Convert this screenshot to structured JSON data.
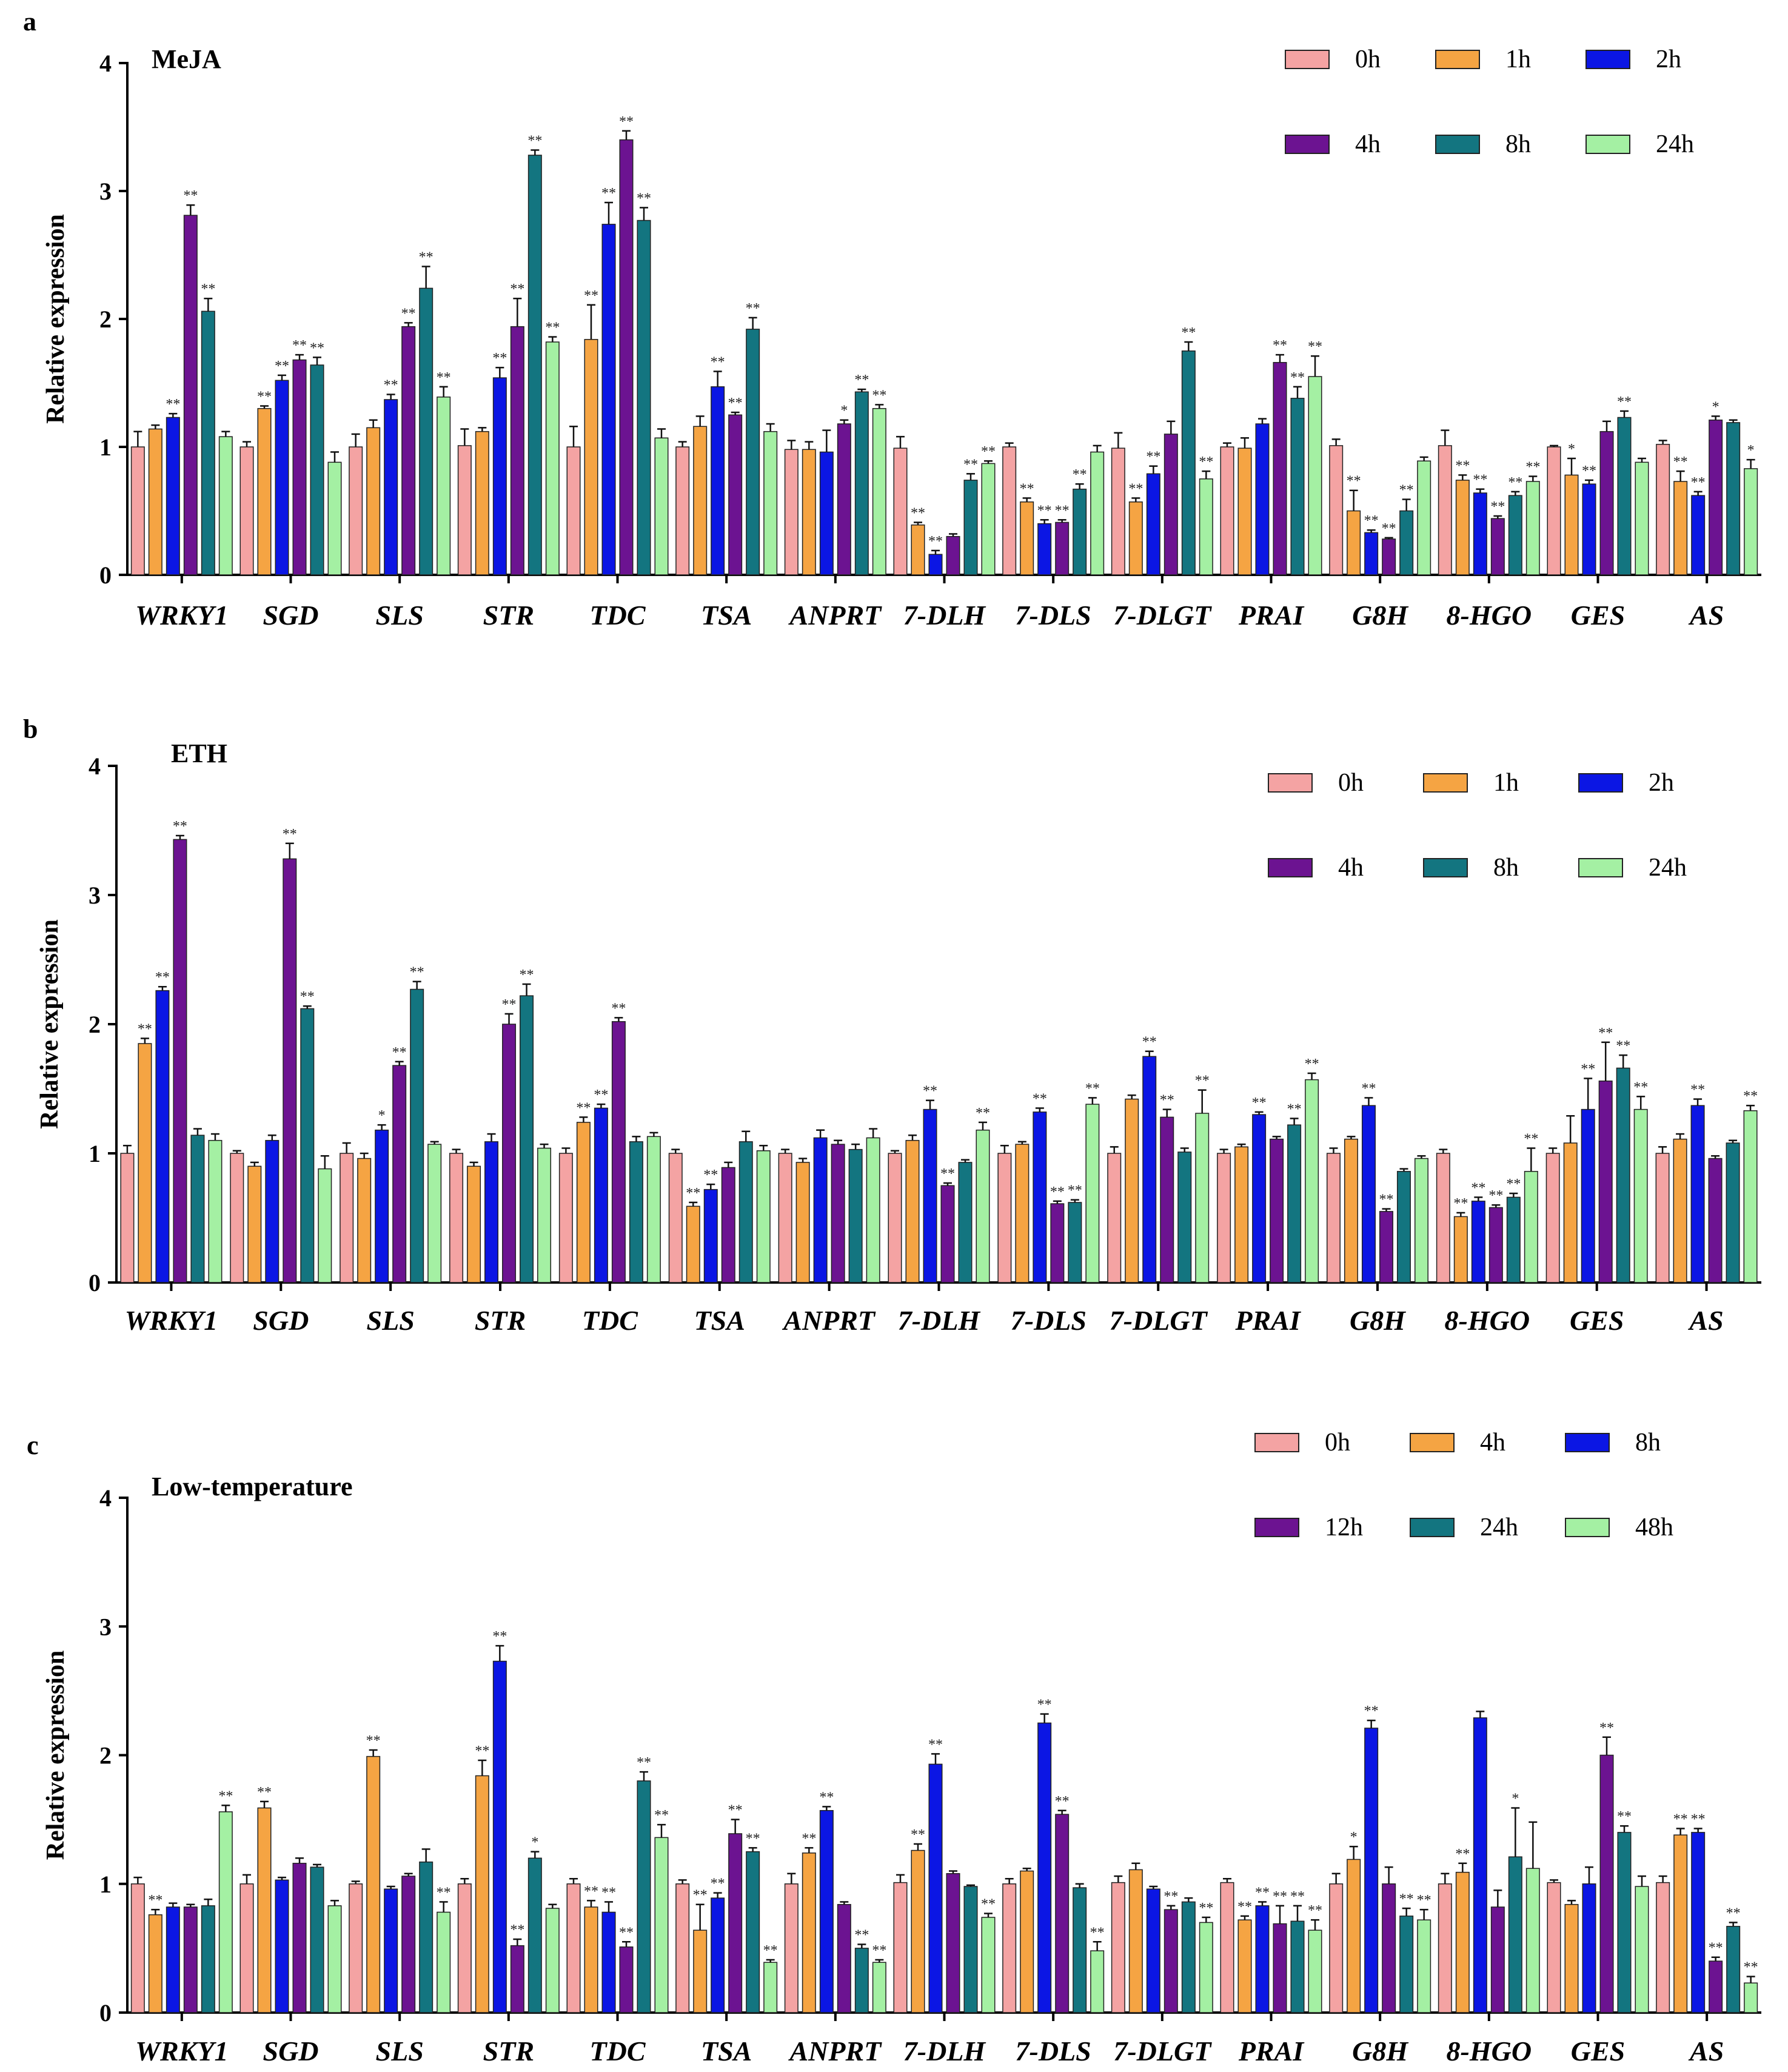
{
  "figure": {
    "ylabel": "Relative expression"
  },
  "chart_data": [
    {
      "type": "bar",
      "panel": "a",
      "title": "MeJA",
      "ylabel": "Relative expression",
      "ylim": [
        0,
        4
      ],
      "yticks": [
        0,
        1,
        2,
        3,
        4
      ],
      "categories": [
        "WRKY1",
        "SGD",
        "SLS",
        "STR",
        "TDC",
        "TSA",
        "ANPRT",
        "7-DLH",
        "7-DLS",
        "7-DLGT",
        "PRAI",
        "G8H",
        "8-HGO",
        "GES",
        "AS"
      ],
      "legend": [
        "0h",
        "1h",
        "2h",
        "4h",
        "8h",
        "24h"
      ],
      "colors": [
        "#f4a3a3",
        "#f5a443",
        "#0b16e4",
        "#6c1391",
        "#137580",
        "#a4f0a3"
      ],
      "series": [
        {
          "name": "0h",
          "values": [
            1.0,
            1.0,
            1.0,
            1.01,
            1.0,
            1.0,
            0.98,
            0.99,
            1.0,
            0.99,
            1.0,
            1.01,
            1.01,
            1.0,
            1.02
          ],
          "errors": [
            0.12,
            0.04,
            0.1,
            0.13,
            0.16,
            0.04,
            0.07,
            0.09,
            0.03,
            0.12,
            0.03,
            0.05,
            0.12,
            0.01,
            0.03
          ],
          "sig": [
            "",
            "",
            "",
            "",
            "",
            "",
            "",
            "",
            "",
            "",
            "",
            "",
            "",
            "",
            ""
          ]
        },
        {
          "name": "1h",
          "values": [
            1.14,
            1.3,
            1.15,
            1.12,
            1.84,
            1.16,
            0.98,
            0.39,
            0.57,
            0.57,
            0.99,
            0.5,
            0.74,
            0.78,
            0.73
          ],
          "errors": [
            0.03,
            0.02,
            0.06,
            0.03,
            0.27,
            0.08,
            0.06,
            0.02,
            0.03,
            0.03,
            0.08,
            0.16,
            0.04,
            0.13,
            0.08
          ],
          "sig": [
            "",
            "**",
            "",
            "",
            "**",
            "",
            "",
            "**",
            "**",
            "**",
            "",
            "**",
            "**",
            "*",
            "**"
          ]
        },
        {
          "name": "2h",
          "values": [
            1.23,
            1.52,
            1.37,
            1.54,
            2.74,
            1.47,
            0.96,
            0.16,
            0.4,
            0.79,
            1.18,
            0.33,
            0.64,
            0.71,
            0.62
          ],
          "errors": [
            0.03,
            0.04,
            0.04,
            0.08,
            0.17,
            0.12,
            0.17,
            0.03,
            0.03,
            0.06,
            0.04,
            0.02,
            0.03,
            0.03,
            0.03
          ],
          "sig": [
            "**",
            "**",
            "**",
            "**",
            "**",
            "**",
            "",
            "**",
            "**",
            "**",
            "",
            "**",
            "**",
            "**",
            "**"
          ]
        },
        {
          "name": "4h",
          "values": [
            2.81,
            1.68,
            1.94,
            1.94,
            3.4,
            1.25,
            1.18,
            0.3,
            0.41,
            1.1,
            1.66,
            0.28,
            0.44,
            1.12,
            1.21
          ],
          "errors": [
            0.08,
            0.04,
            0.03,
            0.22,
            0.07,
            0.02,
            0.03,
            0.02,
            0.02,
            0.1,
            0.06,
            0.01,
            0.02,
            0.08,
            0.03
          ],
          "sig": [
            "**",
            "**",
            "**",
            "**",
            "**",
            "**",
            "*",
            "",
            "**",
            "",
            "**",
            "**",
            "**",
            "",
            "*"
          ]
        },
        {
          "name": "8h",
          "values": [
            2.06,
            1.64,
            2.24,
            3.28,
            2.77,
            1.92,
            1.43,
            0.74,
            0.67,
            1.75,
            1.38,
            0.5,
            0.62,
            1.23,
            1.19
          ],
          "errors": [
            0.1,
            0.06,
            0.17,
            0.04,
            0.1,
            0.09,
            0.02,
            0.05,
            0.04,
            0.07,
            0.09,
            0.09,
            0.03,
            0.05,
            0.02
          ],
          "sig": [
            "**",
            "**",
            "**",
            "**",
            "**",
            "**",
            "**",
            "**",
            "**",
            "**",
            "**",
            "**",
            "**",
            "**",
            ""
          ]
        },
        {
          "name": "24h",
          "values": [
            1.08,
            0.88,
            1.39,
            1.82,
            1.07,
            1.12,
            1.3,
            0.87,
            0.96,
            0.75,
            1.55,
            0.89,
            0.73,
            0.88,
            0.83
          ],
          "errors": [
            0.04,
            0.08,
            0.08,
            0.04,
            0.07,
            0.06,
            0.03,
            0.02,
            0.05,
            0.06,
            0.16,
            0.03,
            0.04,
            0.03,
            0.07
          ],
          "sig": [
            "",
            "",
            "**",
            "**",
            "",
            "",
            "**",
            "**",
            "",
            "**",
            "**",
            "",
            "**",
            "",
            "*"
          ]
        }
      ]
    },
    {
      "type": "bar",
      "panel": "b",
      "title": "ETH",
      "ylabel": "Relative expression",
      "ylim": [
        0,
        4
      ],
      "yticks": [
        0,
        1,
        2,
        3,
        4
      ],
      "categories": [
        "WRKY1",
        "SGD",
        "SLS",
        "STR",
        "TDC",
        "TSA",
        "ANPRT",
        "7-DLH",
        "7-DLS",
        "7-DLGT",
        "PRAI",
        "G8H",
        "8-HGO",
        "GES",
        "AS"
      ],
      "legend": [
        "0h",
        "1h",
        "2h",
        "4h",
        "8h",
        "24h"
      ],
      "colors": [
        "#f4a3a3",
        "#f5a443",
        "#0b16e4",
        "#6c1391",
        "#137580",
        "#a4f0a3"
      ],
      "series": [
        {
          "name": "0h",
          "values": [
            1.0,
            1.0,
            1.0,
            1.0,
            1.0,
            1.0,
            1.0,
            1.0,
            1.0,
            1.0,
            1.0,
            1.0,
            1.0,
            1.0,
            1.0
          ],
          "errors": [
            0.06,
            0.02,
            0.08,
            0.03,
            0.04,
            0.03,
            0.03,
            0.02,
            0.06,
            0.05,
            0.03,
            0.04,
            0.03,
            0.04,
            0.05
          ],
          "sig": [
            "",
            "",
            "",
            "",
            "",
            "",
            "",
            "",
            "",
            "",
            "",
            "",
            "",
            "",
            ""
          ]
        },
        {
          "name": "1h",
          "values": [
            1.85,
            0.9,
            0.96,
            0.9,
            1.24,
            0.59,
            0.93,
            1.1,
            1.07,
            1.42,
            1.05,
            1.11,
            0.51,
            1.08,
            1.11
          ],
          "errors": [
            0.04,
            0.03,
            0.04,
            0.03,
            0.04,
            0.03,
            0.03,
            0.04,
            0.02,
            0.03,
            0.02,
            0.02,
            0.03,
            0.21,
            0.04
          ],
          "sig": [
            "**",
            "",
            "",
            "",
            "**",
            "**",
            "",
            "",
            "",
            "",
            "",
            "",
            "**",
            "",
            ""
          ]
        },
        {
          "name": "2h",
          "values": [
            2.26,
            1.1,
            1.18,
            1.09,
            1.35,
            0.72,
            1.12,
            1.34,
            1.32,
            1.75,
            1.3,
            1.37,
            0.63,
            1.34,
            1.37
          ],
          "errors": [
            0.03,
            0.04,
            0.04,
            0.06,
            0.03,
            0.04,
            0.06,
            0.07,
            0.03,
            0.04,
            0.02,
            0.06,
            0.03,
            0.24,
            0.05
          ],
          "sig": [
            "**",
            "",
            "*",
            "",
            "**",
            "**",
            "",
            "**",
            "**",
            "**",
            "**",
            "**",
            "**",
            "**",
            "**"
          ]
        },
        {
          "name": "4h",
          "values": [
            3.43,
            3.28,
            1.68,
            2.0,
            2.02,
            0.89,
            1.07,
            0.75,
            0.61,
            1.28,
            1.11,
            0.55,
            0.58,
            1.56,
            0.96
          ],
          "errors": [
            0.03,
            0.12,
            0.03,
            0.08,
            0.03,
            0.04,
            0.03,
            0.02,
            0.02,
            0.06,
            0.02,
            0.02,
            0.02,
            0.3,
            0.02
          ],
          "sig": [
            "**",
            "**",
            "**",
            "**",
            "**",
            "",
            "",
            "**",
            "**",
            "**",
            "",
            "**",
            "**",
            "**",
            ""
          ]
        },
        {
          "name": "8h",
          "values": [
            1.14,
            2.12,
            2.27,
            2.22,
            1.09,
            1.09,
            1.03,
            0.93,
            0.62,
            1.01,
            1.22,
            0.86,
            0.66,
            1.66,
            1.08
          ],
          "errors": [
            0.05,
            0.02,
            0.06,
            0.09,
            0.04,
            0.08,
            0.04,
            0.02,
            0.02,
            0.03,
            0.05,
            0.02,
            0.03,
            0.1,
            0.02
          ],
          "sig": [
            "",
            "**",
            "**",
            "**",
            "",
            "",
            "",
            "",
            "**",
            "",
            "**",
            "",
            "**",
            "**",
            ""
          ]
        },
        {
          "name": "24h",
          "values": [
            1.1,
            0.88,
            1.07,
            1.04,
            1.13,
            1.02,
            1.12,
            1.18,
            1.38,
            1.31,
            1.57,
            0.96,
            0.86,
            1.34,
            1.33
          ],
          "errors": [
            0.05,
            0.1,
            0.02,
            0.03,
            0.03,
            0.04,
            0.07,
            0.06,
            0.05,
            0.18,
            0.05,
            0.02,
            0.18,
            0.1,
            0.04
          ],
          "sig": [
            "",
            "",
            "",
            "",
            "",
            "",
            "",
            "**",
            "**",
            "**",
            "**",
            "",
            "**",
            "**",
            "**"
          ]
        }
      ]
    },
    {
      "type": "bar",
      "panel": "c",
      "title": "Low-temperature",
      "ylabel": "Relative expression",
      "ylim": [
        0,
        4
      ],
      "yticks": [
        0,
        1,
        2,
        3,
        4
      ],
      "categories": [
        "WRKY1",
        "SGD",
        "SLS",
        "STR",
        "TDC",
        "TSA",
        "ANPRT",
        "7-DLH",
        "7-DLS",
        "7-DLGT",
        "PRAI",
        "G8H",
        "8-HGO",
        "GES",
        "AS"
      ],
      "legend": [
        "0h",
        "4h",
        "8h",
        "12h",
        "24h",
        "48h"
      ],
      "colors": [
        "#f4a3a3",
        "#f5a443",
        "#0b16e4",
        "#6c1391",
        "#137580",
        "#a4f0a3"
      ],
      "series": [
        {
          "name": "0h",
          "values": [
            1.0,
            1.0,
            1.0,
            1.0,
            1.0,
            1.0,
            1.0,
            1.01,
            1.0,
            1.01,
            1.01,
            1.0,
            1.0,
            1.01,
            1.01
          ],
          "errors": [
            0.05,
            0.07,
            0.02,
            0.04,
            0.04,
            0.03,
            0.08,
            0.06,
            0.04,
            0.05,
            0.03,
            0.08,
            0.08,
            0.02,
            0.05
          ],
          "sig": [
            "",
            "",
            "",
            "",
            "",
            "",
            "",
            "",
            "",
            "",
            "",
            "",
            "",
            "",
            ""
          ]
        },
        {
          "name": "4h",
          "values": [
            0.76,
            1.59,
            1.99,
            1.84,
            0.82,
            0.64,
            1.24,
            1.26,
            1.1,
            1.11,
            0.72,
            1.19,
            1.09,
            0.84,
            1.38
          ],
          "errors": [
            0.04,
            0.05,
            0.05,
            0.12,
            0.05,
            0.2,
            0.04,
            0.05,
            0.02,
            0.05,
            0.03,
            0.1,
            0.07,
            0.03,
            0.05
          ],
          "sig": [
            "**",
            "**",
            "**",
            "**",
            "**",
            "**",
            "**",
            "**",
            "",
            "",
            "**",
            "*",
            "**",
            "",
            "**"
          ]
        },
        {
          "name": "8h",
          "values": [
            0.82,
            1.03,
            0.96,
            2.73,
            0.78,
            0.89,
            1.57,
            1.93,
            2.25,
            0.96,
            0.83,
            2.21,
            2.29,
            1.0,
            1.4
          ],
          "errors": [
            0.03,
            0.02,
            0.02,
            0.12,
            0.08,
            0.04,
            0.03,
            0.08,
            0.07,
            0.02,
            0.03,
            0.06,
            0.05,
            0.13,
            0.03
          ],
          "sig": [
            "",
            "",
            "",
            "**",
            "**",
            "**",
            "**",
            "**",
            "**",
            "",
            "**",
            "**",
            "",
            "",
            "**"
          ]
        },
        {
          "name": "12h",
          "values": [
            0.82,
            1.16,
            1.06,
            0.52,
            0.51,
            1.39,
            0.84,
            1.08,
            1.54,
            0.8,
            0.69,
            1.0,
            0.82,
            2.0,
            0.4
          ],
          "errors": [
            0.02,
            0.04,
            0.02,
            0.05,
            0.04,
            0.11,
            0.02,
            0.02,
            0.03,
            0.03,
            0.14,
            0.13,
            0.13,
            0.14,
            0.03
          ],
          "sig": [
            "",
            "",
            "",
            "**",
            "**",
            "**",
            "",
            "",
            "**",
            "**",
            "**",
            "",
            "",
            "**",
            "**"
          ]
        },
        {
          "name": "24h",
          "values": [
            0.83,
            1.13,
            1.17,
            1.2,
            1.8,
            1.25,
            0.5,
            0.98,
            0.97,
            0.86,
            0.71,
            0.75,
            1.21,
            1.4,
            0.67
          ],
          "errors": [
            0.05,
            0.02,
            0.1,
            0.05,
            0.07,
            0.03,
            0.03,
            0.01,
            0.03,
            0.03,
            0.12,
            0.06,
            0.38,
            0.05,
            0.03
          ],
          "sig": [
            "",
            "",
            "",
            "*",
            "**",
            "**",
            "**",
            "",
            "",
            "",
            "**",
            "**",
            "*",
            "**",
            "**"
          ]
        },
        {
          "name": "48h",
          "values": [
            1.56,
            0.83,
            0.78,
            0.81,
            1.36,
            0.39,
            0.39,
            0.74,
            0.48,
            0.7,
            0.64,
            0.72,
            1.12,
            0.98,
            0.23
          ],
          "errors": [
            0.05,
            0.04,
            0.08,
            0.03,
            0.1,
            0.02,
            0.02,
            0.03,
            0.07,
            0.04,
            0.08,
            0.08,
            0.36,
            0.08,
            0.05
          ],
          "sig": [
            "**",
            "",
            "**",
            "",
            "**",
            "**",
            "**",
            "**",
            "**",
            "**",
            "**",
            "**",
            "",
            "",
            "**"
          ]
        }
      ]
    }
  ]
}
